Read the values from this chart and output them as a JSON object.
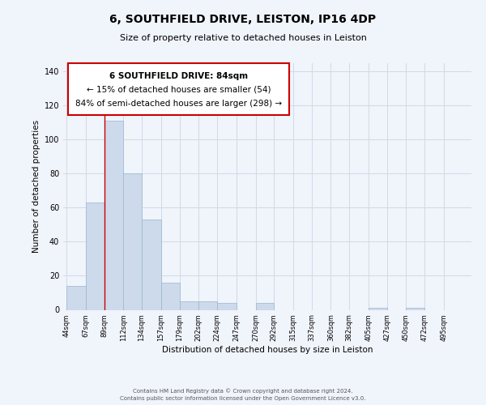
{
  "title": "6, SOUTHFIELD DRIVE, LEISTON, IP16 4DP",
  "subtitle": "Size of property relative to detached houses in Leiston",
  "xlabel": "Distribution of detached houses by size in Leiston",
  "ylabel": "Number of detached properties",
  "bin_labels": [
    "44sqm",
    "67sqm",
    "89sqm",
    "112sqm",
    "134sqm",
    "157sqm",
    "179sqm",
    "202sqm",
    "224sqm",
    "247sqm",
    "270sqm",
    "292sqm",
    "315sqm",
    "337sqm",
    "360sqm",
    "382sqm",
    "405sqm",
    "427sqm",
    "450sqm",
    "472sqm",
    "495sqm"
  ],
  "bar_values": [
    14,
    63,
    111,
    80,
    53,
    16,
    5,
    5,
    4,
    0,
    4,
    0,
    0,
    0,
    0,
    0,
    1,
    0,
    1,
    0,
    0
  ],
  "bar_color": "#ccdaeb",
  "bar_edge_color": "#9ab5ce",
  "grid_color": "#d0dae8",
  "vline_x": 89,
  "vline_color": "#cc0000",
  "ylim": [
    0,
    145
  ],
  "yticks": [
    0,
    20,
    40,
    60,
    80,
    100,
    120,
    140
  ],
  "annotation_title": "6 SOUTHFIELD DRIVE: 84sqm",
  "annotation_line2": "← 15% of detached houses are smaller (54)",
  "annotation_line3": "84% of semi-detached houses are larger (298) →",
  "annotation_box_color": "#ffffff",
  "annotation_box_edge": "#cc0000",
  "footer_line1": "Contains HM Land Registry data © Crown copyright and database right 2024.",
  "footer_line2": "Contains public sector information licensed under the Open Government Licence v3.0.",
  "bin_edges": [
    44,
    67,
    89,
    112,
    134,
    157,
    179,
    202,
    224,
    247,
    270,
    292,
    315,
    337,
    360,
    382,
    405,
    427,
    450,
    472,
    495,
    518
  ],
  "background_color": "#f0f4fb",
  "title_fontsize": 10,
  "subtitle_fontsize": 8,
  "ylabel_fontsize": 7.5,
  "xlabel_fontsize": 7.5,
  "tick_fontsize": 6,
  "ytick_fontsize": 7
}
